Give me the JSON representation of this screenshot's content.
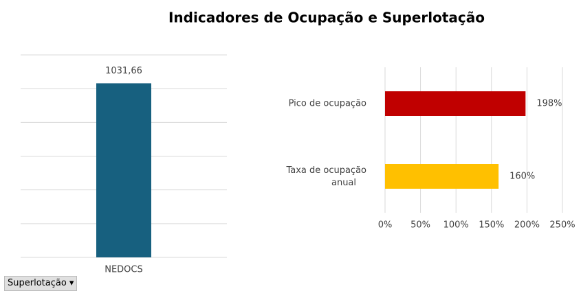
{
  "title": "Indicadores de Ocupação e Superlotação",
  "chart_data": [
    {
      "type": "bar",
      "categories": [
        "NEDOCS"
      ],
      "values": [
        1031.66
      ],
      "value_labels": [
        "1031,66"
      ],
      "color": "#17607f",
      "ylim": [
        0,
        1200
      ],
      "yticks": [
        0,
        200,
        400,
        600,
        800,
        1000,
        1200
      ],
      "grid": true
    },
    {
      "type": "hbar",
      "categories": [
        "Pico de ocupação",
        "Taxa de ocupação anual"
      ],
      "values": [
        198,
        160
      ],
      "value_labels": [
        "198%",
        "160%"
      ],
      "colors": [
        "#c00000",
        "#ffc000"
      ],
      "xlim": [
        0,
        250
      ],
      "xticks": [
        {
          "value": 0,
          "label": "0%"
        },
        {
          "value": 50,
          "label": "50%"
        },
        {
          "value": 100,
          "label": "100%"
        },
        {
          "value": 150,
          "label": "150%"
        },
        {
          "value": 200,
          "label": "200%"
        },
        {
          "value": 250,
          "label": "250%"
        }
      ],
      "grid": true
    }
  ],
  "filter": "Superlotação"
}
